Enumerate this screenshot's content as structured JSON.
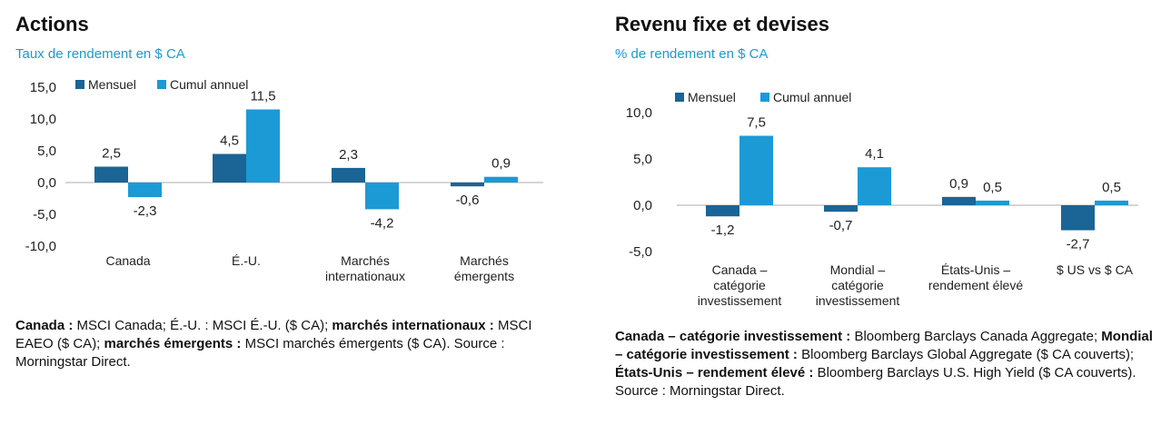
{
  "colors": {
    "monthly": "#1a6496",
    "ytd": "#1b9ad6",
    "axis": "#c8c8c8",
    "text": "#222222",
    "subtitle": "#1b9ad6"
  },
  "equities": {
    "title": "Actions",
    "subtitle": "Taux de rendement en $ CA",
    "note": [
      {
        "text": "Canada :",
        "bold": true
      },
      {
        "text": " MSCI Canada; É.-U. : MSCI É.-U. ($ CA); ",
        "bold": false
      },
      {
        "text": "marchés internationaux :",
        "bold": true
      },
      {
        "text": " MSCI EAEO ($ CA); ",
        "bold": false
      },
      {
        "text": "marchés émergents :",
        "bold": true
      },
      {
        "text": " MSCI marchés émergents ($ CA). Source : Morningstar Direct.",
        "bold": false
      }
    ]
  },
  "fixed_income": {
    "title": "Revenu fixe et devises",
    "subtitle": "% de rendement en $ CA",
    "note": [
      {
        "text": "Canada – catégorie investissement :",
        "bold": true
      },
      {
        "text": " Bloomberg Barclays Canada Aggregate; ",
        "bold": false
      },
      {
        "text": "Mondial – catégorie investissement :",
        "bold": true
      },
      {
        "text": " Bloomberg Barclays Global Aggregate ($ CA couverts); ",
        "bold": false
      },
      {
        "text": "États-Unis – rendement élevé :",
        "bold": true
      },
      {
        "text": " Bloomberg Barclays U.S. High Yield ($ CA couverts). Source : Morningstar Direct.",
        "bold": false
      }
    ]
  },
  "chart_data": [
    {
      "type": "bar",
      "id": "equities",
      "title": "Actions",
      "ylabel": "Taux de rendement en $ CA",
      "categories": [
        [
          "Canada"
        ],
        [
          "É.-U."
        ],
        [
          "Marchés",
          "internationaux"
        ],
        [
          "Marchés",
          "émergents"
        ]
      ],
      "series": [
        {
          "name": "Mensuel",
          "values": [
            2.5,
            4.5,
            2.3,
            -0.6
          ],
          "labels": [
            "2,5",
            "4,5",
            "2,3",
            "-0,6"
          ]
        },
        {
          "name": "Cumul annuel",
          "values": [
            -2.3,
            11.5,
            -4.2,
            0.9
          ],
          "labels": [
            "-2,3",
            "11,5",
            "-4,2",
            "0,9"
          ]
        }
      ],
      "ylim": [
        -10,
        15
      ],
      "yticks": [
        15,
        10,
        5,
        0,
        -5,
        -10
      ],
      "ytick_labels": [
        "15,0",
        "10,0",
        "5,0",
        "0,0",
        "-5,0",
        "-10,0"
      ],
      "legend": "top-left",
      "grid": false
    },
    {
      "type": "bar",
      "id": "fixed_income",
      "title": "Revenu fixe et devises",
      "ylabel": "% de rendement en $ CA",
      "categories": [
        [
          "Canada –",
          "catégorie",
          "investissement"
        ],
        [
          "Mondial –",
          "catégorie",
          "investissement"
        ],
        [
          "États-Unis –",
          "rendement élevé"
        ],
        [
          "$ US vs $ CA"
        ]
      ],
      "series": [
        {
          "name": "Mensuel",
          "values": [
            -1.2,
            -0.7,
            0.9,
            -2.7
          ],
          "labels": [
            "-1,2",
            "-0,7",
            "0,9",
            "-2,7"
          ]
        },
        {
          "name": "Cumul annuel",
          "values": [
            7.5,
            4.1,
            0.5,
            0.5
          ],
          "labels": [
            "7,5",
            "4,1",
            "0,5",
            "0,5"
          ]
        }
      ],
      "ylim": [
        -5,
        10
      ],
      "yticks": [
        10,
        5,
        0,
        -5
      ],
      "ytick_labels": [
        "10,0",
        "5,0",
        "0,0",
        "-5,0"
      ],
      "legend": "top-left",
      "grid": false
    }
  ]
}
